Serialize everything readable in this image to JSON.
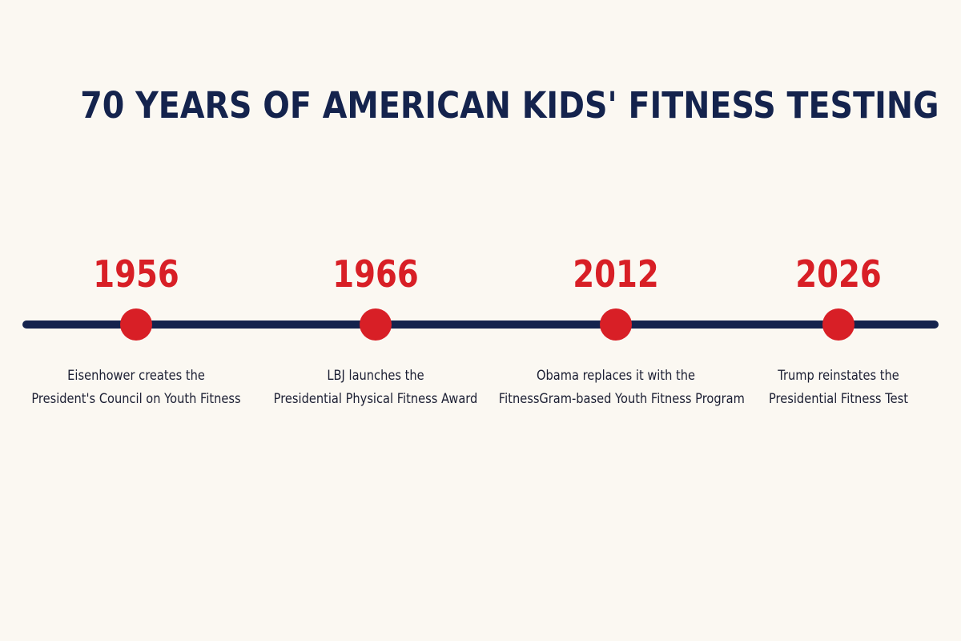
{
  "title": "70 YEARS OF AMERICAN KIDS' FITNESS TESTING",
  "colors": {
    "background": "#fbf8f2",
    "title": "#14234d",
    "line": "#14234d",
    "year": "#d81f26",
    "dot": "#d81f26",
    "text": "#1c1f33"
  },
  "events": [
    {
      "year": "1956",
      "line1": "Eisenhower creates the",
      "line2": "President's Council on Youth Fitness"
    },
    {
      "year": "1966",
      "line1": "LBJ launches the",
      "line2": "Presidential Physical Fitness Award"
    },
    {
      "year": "2012",
      "line1": "Obama replaces it with the",
      "line2": "FitnessGram-based Youth Fitness Program"
    },
    {
      "year": "2026",
      "line1": "Trump reinstates the",
      "line2": "Presidential Fitness Test"
    }
  ]
}
